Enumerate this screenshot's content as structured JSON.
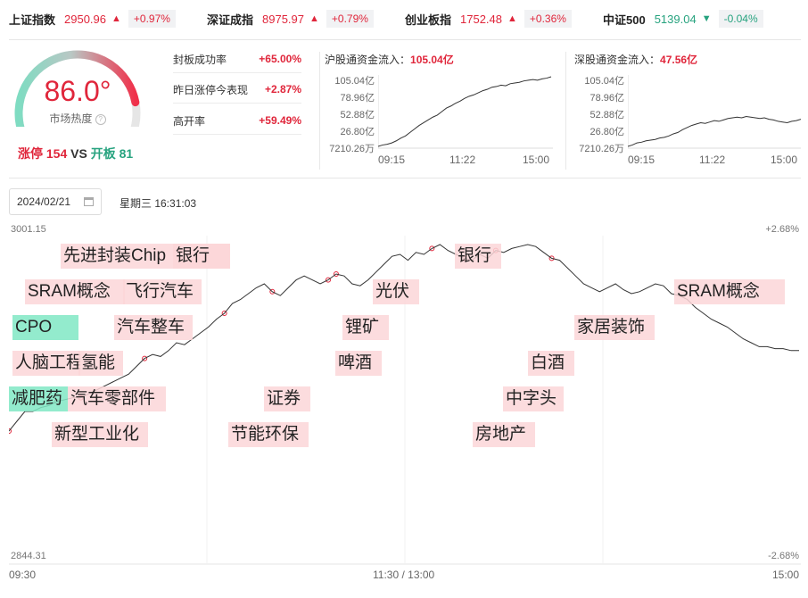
{
  "indices": [
    {
      "name": "上证指数",
      "value": "2950.96",
      "arrow": "▲",
      "change": "+0.97%",
      "dir": "up"
    },
    {
      "name": "深证成指",
      "value": "8975.97",
      "arrow": "▲",
      "change": "+0.79%",
      "dir": "up"
    },
    {
      "name": "创业板指",
      "value": "1752.48",
      "arrow": "▲",
      "change": "+0.36%",
      "dir": "up"
    },
    {
      "name": "中证500",
      "value": "5139.04",
      "arrow": "▼",
      "change": "-0.04%",
      "dir": "down"
    }
  ],
  "heat": {
    "value": "86.0°",
    "level": 0.86,
    "label": "市场热度",
    "limit_up_label": "涨停",
    "limit_up": "154",
    "vs": "VS",
    "opened_label": "开板",
    "opened": "81"
  },
  "stats": [
    {
      "label": "封板成功率",
      "value": "+65.00%"
    },
    {
      "label": "昨日涨停今表现",
      "value": "+2.87%"
    },
    {
      "label": "高开率",
      "value": "+59.49%"
    }
  ],
  "flows": [
    {
      "title": "沪股通资金流入：",
      "value": "105.04亿",
      "yticks": [
        "105.04亿",
        "78.96亿",
        "52.88亿",
        "26.80亿",
        "7210.26万"
      ],
      "xticks": [
        "09:15",
        "11:22",
        "15:00"
      ],
      "series": [
        0.0,
        0.02,
        0.03,
        0.05,
        0.08,
        0.12,
        0.15,
        0.2,
        0.25,
        0.3,
        0.34,
        0.38,
        0.42,
        0.45,
        0.5,
        0.55,
        0.58,
        0.62,
        0.65,
        0.69,
        0.72,
        0.74,
        0.77,
        0.8,
        0.82,
        0.85,
        0.86,
        0.88,
        0.87,
        0.9,
        0.91,
        0.92,
        0.94,
        0.95,
        0.96,
        0.95,
        0.97,
        0.98,
        1.0
      ]
    },
    {
      "title": "深股通资金流入：",
      "value": "47.56亿",
      "yticks": [
        "105.04亿",
        "78.96亿",
        "52.88亿",
        "26.80亿",
        "7210.26万"
      ],
      "xticks": [
        "09:15",
        "11:22",
        "15:00"
      ],
      "series": [
        0.0,
        0.02,
        0.05,
        0.06,
        0.08,
        0.09,
        0.1,
        0.12,
        0.13,
        0.15,
        0.18,
        0.2,
        0.24,
        0.27,
        0.3,
        0.32,
        0.34,
        0.33,
        0.35,
        0.37,
        0.36,
        0.38,
        0.4,
        0.41,
        0.42,
        0.41,
        0.43,
        0.42,
        0.41,
        0.4,
        0.41,
        0.39,
        0.38,
        0.36,
        0.35,
        0.34,
        0.36,
        0.37,
        0.39
      ]
    }
  ],
  "date": "2024/02/21",
  "weekday": "星期三 16:31:03",
  "main": {
    "ymax": "3001.15",
    "ymin": "2844.31",
    "pmax": "+2.68%",
    "pmin": "-2.68%",
    "xticks": [
      "09:30",
      "11:30 / 13:00",
      "15:00"
    ],
    "series": [
      0.05,
      0.1,
      0.15,
      0.15,
      0.17,
      0.18,
      0.2,
      0.21,
      0.22,
      0.22,
      0.24,
      0.26,
      0.28,
      0.3,
      0.32,
      0.34,
      0.38,
      0.42,
      0.44,
      0.43,
      0.46,
      0.5,
      0.49,
      0.52,
      0.55,
      0.58,
      0.62,
      0.65,
      0.7,
      0.72,
      0.75,
      0.78,
      0.8,
      0.76,
      0.74,
      0.78,
      0.82,
      0.84,
      0.82,
      0.8,
      0.82,
      0.85,
      0.84,
      0.8,
      0.79,
      0.82,
      0.86,
      0.9,
      0.94,
      0.95,
      0.92,
      0.96,
      0.95,
      0.98,
      1.0,
      0.97,
      0.95,
      0.93,
      0.92,
      0.95,
      0.93,
      0.97,
      0.96,
      0.98,
      0.99,
      1.0,
      0.99,
      0.96,
      0.93,
      0.92,
      0.88,
      0.84,
      0.8,
      0.78,
      0.76,
      0.78,
      0.8,
      0.77,
      0.75,
      0.76,
      0.78,
      0.8,
      0.79,
      0.75,
      0.74,
      0.72,
      0.68,
      0.65,
      0.62,
      0.6,
      0.58,
      0.55,
      0.52,
      0.5,
      0.48,
      0.48,
      0.47,
      0.47,
      0.46,
      0.46
    ]
  },
  "tags": [
    {
      "text": "先进封装Chip",
      "color": "r"
    },
    {
      "text": "银行",
      "color": "r"
    },
    {
      "text": "SRAM概念",
      "color": "r"
    },
    {
      "text": "飞行汽车",
      "color": "r"
    },
    {
      "text": "CPO",
      "color": "g"
    },
    {
      "text": "汽车整车",
      "color": "r"
    },
    {
      "text": "人脑工程",
      "color": "r"
    },
    {
      "text": "氢能",
      "color": "r"
    },
    {
      "text": "减肥药",
      "color": "g"
    },
    {
      "text": "汽车零部件",
      "color": "r"
    },
    {
      "text": "新型工业化",
      "color": "r"
    },
    {
      "text": "节能环保",
      "color": "r"
    },
    {
      "text": "证券",
      "color": "r"
    },
    {
      "text": "锂矿",
      "color": "r"
    },
    {
      "text": "光伏",
      "color": "r"
    },
    {
      "text": "啤酒",
      "color": "r"
    },
    {
      "text": "银行",
      "color": "r"
    },
    {
      "text": "房地产",
      "color": "r"
    },
    {
      "text": "中字头",
      "color": "r"
    },
    {
      "text": "白酒",
      "color": "r"
    },
    {
      "text": "家居装饰",
      "color": "r"
    },
    {
      "text": "SRAM概念",
      "color": "r"
    }
  ],
  "colors": {
    "up": "#e0263b",
    "down": "#27a37f",
    "line": "#333333"
  }
}
